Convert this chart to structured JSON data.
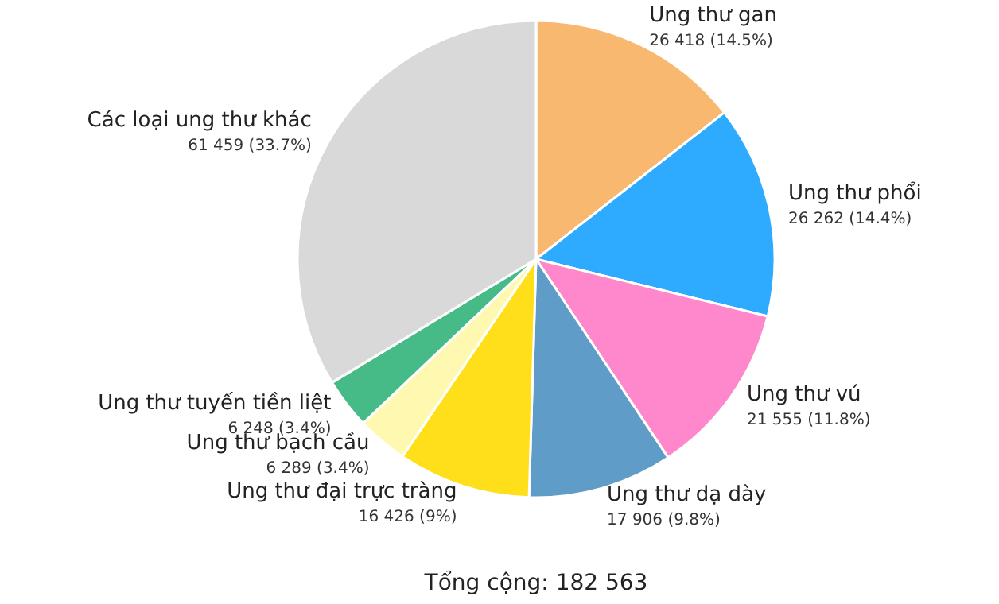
{
  "chart_data": {
    "type": "pie",
    "categories": [
      "Ung thư gan",
      "Ung thư phổi",
      "Ung thư vú",
      "Ung thư dạ dày",
      "Ung thư đại trực tràng",
      "Ung thư bạch cầu",
      "Ung thư tuyến tiền liệt",
      "Các loại ung thư khác"
    ],
    "values": [
      26418,
      26262,
      21555,
      17906,
      16426,
      6289,
      6248,
      61459
    ],
    "colors": [
      "#f8b870",
      "#2eaaff",
      "#ff88cc",
      "#5f9dc8",
      "#ffde1a",
      "#fff8b0",
      "#46bb88",
      "#d9d9d9"
    ],
    "value_labels": [
      "26 418 (14.5%)",
      "26 262 (14.4%)",
      "21 555 (11.8%)",
      "17 906 (9.8%)",
      "16 426 (9%)",
      "6 289 (3.4%)",
      "6 248 (3.4%)",
      "61 459 (33.7%)"
    ],
    "annotations": [
      "Tổng cộng: 182 563"
    ]
  }
}
